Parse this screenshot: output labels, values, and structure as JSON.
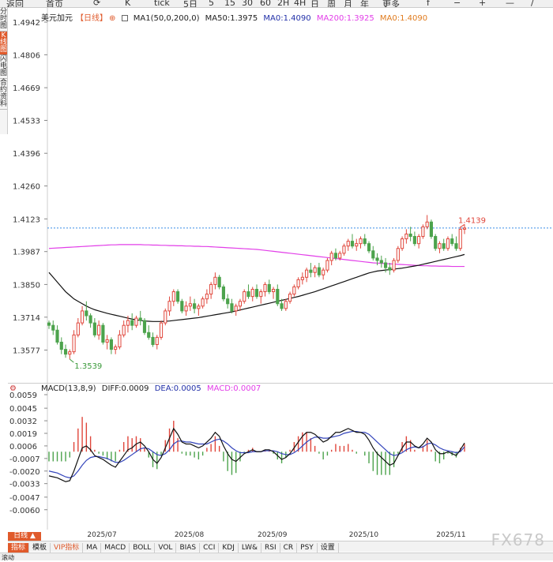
{
  "toolbar": {
    "items": [
      "返回",
      "首页",
      "⟳",
      "K",
      "tick",
      "5日",
      "5",
      "15",
      "30",
      "60",
      "2H",
      "4H",
      "日",
      "周",
      "月",
      "年",
      "更多",
      "f",
      "−",
      "+",
      "—",
      "/"
    ]
  },
  "sidebar": {
    "items": [
      "分时图",
      "K线图",
      "闪电图",
      "合约资料"
    ],
    "active_index": 1
  },
  "price_legend": {
    "symbol": "美元加元",
    "period": "【日线】",
    "ma_spec": "MA1(50,0,200,0)",
    "ma50": "MA50:1.3975",
    "ma0a": "MA0:1.4090",
    "ma200": "MA200:1.3925",
    "ma0b": "MA0:1.4090"
  },
  "macd_legend": {
    "spec": "MACD(13,8,9)",
    "diff": "DIFF:0.0009",
    "dea": "DEA:0.0005",
    "macd": "MACD:0.0007"
  },
  "colors": {
    "up": "#e0463b",
    "down": "#4ca34c",
    "ma50": "#111111",
    "ma200": "#e23ee8",
    "diff": "#111111",
    "dea": "#3344bb",
    "dotted": "#3a8ee6",
    "high_label": "#e0463b",
    "low_label": "#3a9a3a"
  },
  "chart_data": {
    "type": "candlestick",
    "y_ticks": [
      "1.4942",
      "1.4806",
      "1.4669",
      "1.4533",
      "1.4396",
      "1.4260",
      "1.4123",
      "1.3987",
      "1.3850",
      "1.3714",
      "1.3577"
    ],
    "ylim": [
      1.349,
      1.4942
    ],
    "x_labels": [
      "2025/07",
      "2025/08",
      "2025/09",
      "2025/10",
      "2025/11"
    ],
    "x_label_index": [
      13,
      34,
      54,
      76,
      97
    ],
    "high_annotation": "1.4139",
    "high_index": 100,
    "low_annotation": "1.3539",
    "low_index": 5,
    "current_line": 1.4085,
    "candles": [
      [
        1.369,
        1.37,
        1.3665,
        1.368
      ],
      [
        1.368,
        1.37,
        1.364,
        1.366
      ],
      [
        1.366,
        1.368,
        1.36,
        1.361
      ],
      [
        1.361,
        1.363,
        1.356,
        1.358
      ],
      [
        1.358,
        1.36,
        1.3545,
        1.356
      ],
      [
        1.356,
        1.358,
        1.3539,
        1.357
      ],
      [
        1.357,
        1.366,
        1.356,
        1.364
      ],
      [
        1.364,
        1.371,
        1.363,
        1.369
      ],
      [
        1.369,
        1.376,
        1.368,
        1.374
      ],
      [
        1.374,
        1.378,
        1.37,
        1.372
      ],
      [
        1.372,
        1.373,
        1.367,
        1.369
      ],
      [
        1.369,
        1.371,
        1.363,
        1.364
      ],
      [
        1.364,
        1.37,
        1.362,
        1.368
      ],
      [
        1.368,
        1.369,
        1.36,
        1.361
      ],
      [
        1.361,
        1.364,
        1.358,
        1.362
      ],
      [
        1.362,
        1.363,
        1.356,
        1.358
      ],
      [
        1.358,
        1.36,
        1.356,
        1.359
      ],
      [
        1.359,
        1.366,
        1.358,
        1.364
      ],
      [
        1.364,
        1.37,
        1.363,
        1.368
      ],
      [
        1.368,
        1.372,
        1.365,
        1.37
      ],
      [
        1.37,
        1.373,
        1.366,
        1.368
      ],
      [
        1.368,
        1.372,
        1.367,
        1.371
      ],
      [
        1.371,
        1.374,
        1.368,
        1.37
      ],
      [
        1.37,
        1.371,
        1.364,
        1.365
      ],
      [
        1.365,
        1.368,
        1.362,
        1.363
      ],
      [
        1.363,
        1.365,
        1.359,
        1.36
      ],
      [
        1.36,
        1.364,
        1.358,
        1.363
      ],
      [
        1.363,
        1.37,
        1.362,
        1.369
      ],
      [
        1.369,
        1.375,
        1.368,
        1.374
      ],
      [
        1.374,
        1.38,
        1.372,
        1.378
      ],
      [
        1.378,
        1.383,
        1.376,
        1.382
      ],
      [
        1.382,
        1.383,
        1.377,
        1.378
      ],
      [
        1.378,
        1.379,
        1.373,
        1.374
      ],
      [
        1.374,
        1.378,
        1.372,
        1.376
      ],
      [
        1.376,
        1.38,
        1.374,
        1.377
      ],
      [
        1.377,
        1.379,
        1.373,
        1.375
      ],
      [
        1.375,
        1.377,
        1.372,
        1.376
      ],
      [
        1.376,
        1.38,
        1.375,
        1.379
      ],
      [
        1.379,
        1.383,
        1.377,
        1.381
      ],
      [
        1.381,
        1.386,
        1.379,
        1.385
      ],
      [
        1.385,
        1.39,
        1.383,
        1.388
      ],
      [
        1.388,
        1.389,
        1.383,
        1.384
      ],
      [
        1.384,
        1.385,
        1.378,
        1.379
      ],
      [
        1.379,
        1.381,
        1.375,
        1.377
      ],
      [
        1.377,
        1.379,
        1.373,
        1.374
      ],
      [
        1.374,
        1.377,
        1.372,
        1.376
      ],
      [
        1.376,
        1.379,
        1.374,
        1.378
      ],
      [
        1.378,
        1.383,
        1.377,
        1.382
      ],
      [
        1.382,
        1.385,
        1.379,
        1.38
      ],
      [
        1.38,
        1.384,
        1.378,
        1.383
      ],
      [
        1.383,
        1.385,
        1.379,
        1.38
      ],
      [
        1.38,
        1.383,
        1.377,
        1.382
      ],
      [
        1.382,
        1.386,
        1.38,
        1.385
      ],
      [
        1.385,
        1.387,
        1.381,
        1.382
      ],
      [
        1.382,
        1.384,
        1.379,
        1.383
      ],
      [
        1.383,
        1.385,
        1.376,
        1.377
      ],
      [
        1.377,
        1.379,
        1.374,
        1.375
      ],
      [
        1.375,
        1.379,
        1.374,
        1.378
      ],
      [
        1.378,
        1.382,
        1.377,
        1.381
      ],
      [
        1.381,
        1.385,
        1.38,
        1.384
      ],
      [
        1.384,
        1.388,
        1.383,
        1.387
      ],
      [
        1.387,
        1.39,
        1.385,
        1.388
      ],
      [
        1.388,
        1.392,
        1.386,
        1.391
      ],
      [
        1.391,
        1.394,
        1.388,
        1.39
      ],
      [
        1.39,
        1.393,
        1.388,
        1.392
      ],
      [
        1.392,
        1.394,
        1.388,
        1.389
      ],
      [
        1.389,
        1.392,
        1.387,
        1.391
      ],
      [
        1.391,
        1.396,
        1.39,
        1.395
      ],
      [
        1.395,
        1.399,
        1.393,
        1.398
      ],
      [
        1.398,
        1.4,
        1.395,
        1.396
      ],
      [
        1.396,
        1.399,
        1.395,
        1.398
      ],
      [
        1.398,
        1.402,
        1.397,
        1.401
      ],
      [
        1.401,
        1.404,
        1.399,
        1.403
      ],
      [
        1.403,
        1.406,
        1.4,
        1.401
      ],
      [
        1.401,
        1.404,
        1.399,
        1.402
      ],
      [
        1.402,
        1.405,
        1.4,
        1.404
      ],
      [
        1.404,
        1.406,
        1.401,
        1.402
      ],
      [
        1.402,
        1.403,
        1.398,
        1.399
      ],
      [
        1.399,
        1.401,
        1.395,
        1.396
      ],
      [
        1.396,
        1.398,
        1.393,
        1.395
      ],
      [
        1.395,
        1.397,
        1.392,
        1.394
      ],
      [
        1.394,
        1.396,
        1.39,
        1.392
      ],
      [
        1.392,
        1.394,
        1.389,
        1.391
      ],
      [
        1.391,
        1.396,
        1.39,
        1.395
      ],
      [
        1.395,
        1.401,
        1.394,
        1.4
      ],
      [
        1.4,
        1.405,
        1.399,
        1.404
      ],
      [
        1.404,
        1.408,
        1.402,
        1.406
      ],
      [
        1.406,
        1.409,
        1.403,
        1.405
      ],
      [
        1.405,
        1.407,
        1.401,
        1.402
      ],
      [
        1.402,
        1.406,
        1.4,
        1.405
      ],
      [
        1.405,
        1.41,
        1.404,
        1.409
      ],
      [
        1.409,
        1.4139,
        1.408,
        1.411
      ],
      [
        1.411,
        1.412,
        1.404,
        1.405
      ],
      [
        1.405,
        1.406,
        1.399,
        1.4
      ],
      [
        1.4,
        1.403,
        1.398,
        1.402
      ],
      [
        1.402,
        1.404,
        1.399,
        1.4
      ],
      [
        1.4,
        1.405,
        1.399,
        1.404
      ],
      [
        1.404,
        1.406,
        1.401,
        1.402
      ],
      [
        1.402,
        1.405,
        1.399,
        1.4
      ],
      [
        1.4,
        1.409,
        1.399,
        1.408
      ],
      [
        1.408,
        1.41,
        1.406,
        1.4085
      ]
    ],
    "ma50": [
      1.39,
      1.388,
      1.386,
      1.384,
      1.382,
      1.3805,
      1.379,
      1.378,
      1.377,
      1.376,
      1.3752,
      1.3745,
      1.374,
      1.3735,
      1.373,
      1.3726,
      1.3722,
      1.3718,
      1.3714,
      1.371,
      1.3706,
      1.3703,
      1.37,
      1.3698,
      1.3697,
      1.3696,
      1.3696,
      1.3696,
      1.3697,
      1.3698,
      1.37,
      1.3702,
      1.3704,
      1.3706,
      1.3708,
      1.371,
      1.3712,
      1.3715,
      1.3718,
      1.3721,
      1.3724,
      1.3727,
      1.373,
      1.3733,
      1.3736,
      1.374,
      1.3744,
      1.3748,
      1.3752,
      1.3756,
      1.376,
      1.3764,
      1.3768,
      1.3772,
      1.3776,
      1.378,
      1.3784,
      1.3788,
      1.3792,
      1.3796,
      1.38,
      1.3805,
      1.381,
      1.3815,
      1.382,
      1.3826,
      1.3832,
      1.3838,
      1.3844,
      1.385,
      1.3856,
      1.3862,
      1.3868,
      1.3874,
      1.388,
      1.3886,
      1.3892,
      1.3898,
      1.3902,
      1.3906,
      1.3908,
      1.391,
      1.3912,
      1.3914,
      1.3916,
      1.3918,
      1.3921,
      1.3924,
      1.3927,
      1.393,
      1.3934,
      1.3938,
      1.3942,
      1.3946,
      1.395,
      1.3954,
      1.3958,
      1.3962,
      1.3966,
      1.397,
      1.3975
    ],
    "ma200": [
      1.4,
      1.4001,
      1.4002,
      1.4003,
      1.4004,
      1.4005,
      1.4006,
      1.4007,
      1.4008,
      1.4009,
      1.401,
      1.4011,
      1.4012,
      1.4013,
      1.4014,
      1.4015,
      1.4015,
      1.4016,
      1.4016,
      1.4016,
      1.4016,
      1.4016,
      1.4016,
      1.4015,
      1.4015,
      1.4014,
      1.4014,
      1.4013,
      1.4013,
      1.4012,
      1.4012,
      1.4011,
      1.4011,
      1.401,
      1.401,
      1.4009,
      1.4009,
      1.4008,
      1.4008,
      1.4007,
      1.4006,
      1.4005,
      1.4004,
      1.4003,
      1.4002,
      1.4001,
      1.4,
      1.3999,
      1.3998,
      1.3997,
      1.3996,
      1.3994,
      1.3992,
      1.399,
      1.3988,
      1.3986,
      1.3984,
      1.3982,
      1.398,
      1.3978,
      1.3976,
      1.3974,
      1.3972,
      1.397,
      1.3968,
      1.3966,
      1.3964,
      1.3962,
      1.396,
      1.3958,
      1.3956,
      1.3954,
      1.3952,
      1.395,
      1.3948,
      1.3946,
      1.3944,
      1.3942,
      1.394,
      1.3939,
      1.3938,
      1.3937,
      1.3936,
      1.3935,
      1.3934,
      1.3933,
      1.3932,
      1.3931,
      1.393,
      1.3929,
      1.3928,
      1.3928,
      1.3927,
      1.3927,
      1.3926,
      1.3926,
      1.3926,
      1.3925,
      1.3925,
      1.3925,
      1.3925
    ],
    "macd_y_ticks": [
      "0.0059",
      "0.0045",
      "0.0032",
      "0.0019",
      "0.0006",
      "-0.0007",
      "-0.0020",
      "-0.0033",
      "-0.0047",
      "-0.0060"
    ],
    "macd_ylim": [
      -0.007,
      0.0059
    ],
    "diff": [
      -0.0025,
      -0.0026,
      -0.0027,
      -0.0029,
      -0.0031,
      -0.003,
      -0.002,
      -0.0008,
      0.0004,
      0.0006,
      0.0002,
      -0.0004,
      -0.0006,
      -0.0008,
      -0.0011,
      -0.0014,
      -0.0016,
      -0.001,
      -0.0004,
      0.0002,
      0.0004,
      0.0008,
      0.001,
      0.0006,
      0.0,
      -0.0008,
      -0.0012,
      -0.0006,
      0.0004,
      0.0014,
      0.0024,
      0.0018,
      0.001,
      0.0008,
      0.0008,
      0.0006,
      0.0004,
      0.0006,
      0.001,
      0.0014,
      0.002,
      0.0016,
      0.0006,
      -0.0002,
      -0.0008,
      -0.001,
      -0.0006,
      -0.0002,
      0.0,
      0.0002,
      0.0,
      0.0,
      0.0002,
      0.0002,
      0.0,
      -0.0004,
      -0.0008,
      -0.0006,
      -0.0002,
      0.0004,
      0.001,
      0.0016,
      0.002,
      0.002,
      0.0018,
      0.0014,
      0.001,
      0.0012,
      0.0016,
      0.002,
      0.002,
      0.0022,
      0.0024,
      0.0022,
      0.002,
      0.002,
      0.0018,
      0.0012,
      0.0004,
      -0.0002,
      -0.0006,
      -0.001,
      -0.0014,
      -0.0012,
      -0.0004,
      0.0004,
      0.001,
      0.001,
      0.0006,
      0.0004,
      0.0008,
      0.0014,
      0.001,
      0.0002,
      -0.0002,
      -0.0002,
      0.0,
      -0.0002,
      -0.0004,
      0.0002,
      0.0009
    ],
    "dea": [
      -0.002,
      -0.0021,
      -0.0022,
      -0.0024,
      -0.0026,
      -0.0027,
      -0.0025,
      -0.002,
      -0.0014,
      -0.0009,
      -0.0006,
      -0.0005,
      -0.0005,
      -0.0006,
      -0.0007,
      -0.0009,
      -0.0011,
      -0.0011,
      -0.0009,
      -0.0006,
      -0.0003,
      0.0,
      0.0003,
      0.0004,
      0.0003,
      0.0,
      -0.0003,
      -0.0004,
      -0.0002,
      0.0002,
      0.0008,
      0.0011,
      0.0011,
      0.001,
      0.001,
      0.0009,
      0.0008,
      0.0008,
      0.0008,
      0.001,
      0.0012,
      0.0013,
      0.0011,
      0.0008,
      0.0004,
      0.0001,
      -0.0001,
      -0.0001,
      -0.0001,
      0.0,
      0.0,
      0.0,
      0.0001,
      0.0001,
      0.0001,
      0.0,
      -0.0002,
      -0.0003,
      -0.0003,
      -0.0001,
      0.0002,
      0.0006,
      0.001,
      0.0013,
      0.0015,
      0.0015,
      0.0014,
      0.0014,
      0.0015,
      0.0016,
      0.0017,
      0.0019,
      0.002,
      0.0021,
      0.0021,
      0.002,
      0.002,
      0.0018,
      0.0014,
      0.001,
      0.0006,
      0.0002,
      -0.0002,
      -0.0004,
      -0.0003,
      -0.0001,
      0.0002,
      0.0004,
      0.0005,
      0.0004,
      0.0005,
      0.0008,
      0.0009,
      0.0007,
      0.0004,
      0.0002,
      0.0001,
      0.0,
      -0.0001,
      0.0,
      0.0005
    ]
  },
  "x_axis": {
    "labels": [
      "2025/07",
      "2025/08",
      "2025/09",
      "2025/10",
      "2025/11"
    ]
  },
  "timeframe": "日线 ▲",
  "tabs": [
    "指标",
    "模板",
    "VIP指标",
    "MA",
    "MACD",
    "BOLL",
    "VOL",
    "BIAS",
    "CCI",
    "KDJ",
    "LW&",
    "RSI",
    "CR",
    "PSY",
    "设置"
  ],
  "watermark": "FX678",
  "bottombar": "滚动"
}
